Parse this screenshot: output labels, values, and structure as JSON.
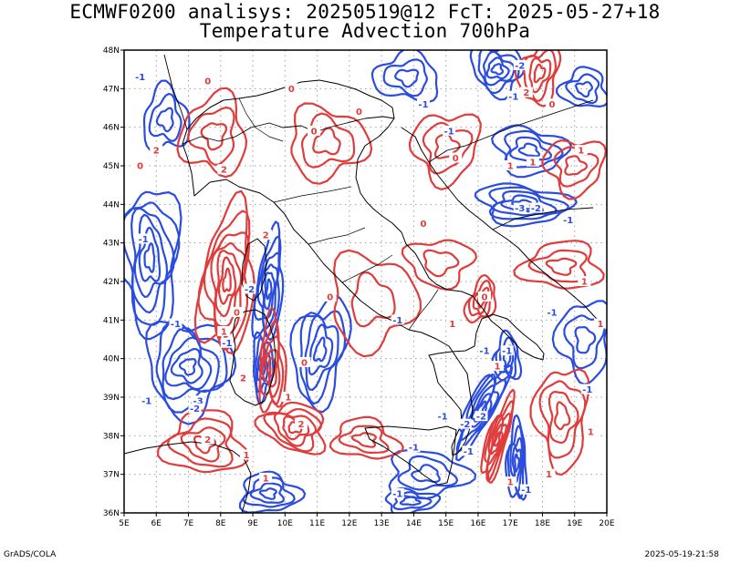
{
  "header": {
    "title_line1": "ECMWF0200 analisys: 20250519@12 FcT: 2025-05-27+18",
    "title_line2": "Temperature Advection 700hPa"
  },
  "footer": {
    "left": "GrADS/COLA",
    "right": "2025-05-19-21:58"
  },
  "map": {
    "lon_range": [
      5,
      20
    ],
    "lat_range": [
      36,
      48
    ],
    "lon_labels": [
      "5E",
      "6E",
      "7E",
      "8E",
      "9E",
      "10E",
      "11E",
      "12E",
      "13E",
      "14E",
      "15E",
      "16E",
      "17E",
      "18E",
      "19E",
      "20E"
    ],
    "lat_labels": [
      "36N",
      "37N",
      "38N",
      "39N",
      "40N",
      "41N",
      "42N",
      "43N",
      "44N",
      "45N",
      "46N",
      "47N",
      "48N"
    ],
    "grid": "dotted",
    "colors": {
      "positive": "#e03c3c",
      "negative": "#2a4de0",
      "coast": "#000000",
      "grid": "#a0a0a0"
    },
    "contour_labels": [
      {
        "text": "-2",
        "lon": 17.3,
        "lat": 47.6,
        "sign": "neg"
      },
      {
        "text": "-1",
        "lon": 14.3,
        "lat": 46.6,
        "sign": "neg"
      },
      {
        "text": "-1",
        "lon": 15.1,
        "lat": 45.9,
        "sign": "neg"
      },
      {
        "text": "-1",
        "lon": 17.1,
        "lat": 46.8,
        "sign": "neg"
      },
      {
        "text": "2",
        "lon": 17.5,
        "lat": 46.9,
        "sign": "pos"
      },
      {
        "text": "0",
        "lon": 18.3,
        "lat": 46.6,
        "sign": "pos"
      },
      {
        "text": "1",
        "lon": 19.2,
        "lat": 45.4,
        "sign": "pos"
      },
      {
        "text": "1",
        "lon": 17.7,
        "lat": 45.1,
        "sign": "pos"
      },
      {
        "text": "1",
        "lon": 17.0,
        "lat": 45.0,
        "sign": "pos"
      },
      {
        "text": "0",
        "lon": 15.3,
        "lat": 45.2,
        "sign": "pos"
      },
      {
        "text": "-3",
        "lon": 17.3,
        "lat": 43.9,
        "sign": "neg"
      },
      {
        "text": "-2",
        "lon": 17.8,
        "lat": 43.9,
        "sign": "neg"
      },
      {
        "text": "-1",
        "lon": 18.8,
        "lat": 43.6,
        "sign": "neg"
      },
      {
        "text": "0",
        "lon": 14.3,
        "lat": 43.5,
        "sign": "pos"
      },
      {
        "text": "0",
        "lon": 7.6,
        "lat": 47.2,
        "sign": "pos"
      },
      {
        "text": "0",
        "lon": 5.5,
        "lat": 45.0,
        "sign": "pos"
      },
      {
        "text": "-1",
        "lon": 5.5,
        "lat": 47.3,
        "sign": "neg"
      },
      {
        "text": "2",
        "lon": 6.0,
        "lat": 45.4,
        "sign": "pos"
      },
      {
        "text": "2",
        "lon": 8.1,
        "lat": 44.9,
        "sign": "pos"
      },
      {
        "text": "-1",
        "lon": 5.6,
        "lat": 43.1,
        "sign": "neg"
      },
      {
        "text": "2",
        "lon": 9.4,
        "lat": 43.2,
        "sign": "pos"
      },
      {
        "text": "0",
        "lon": 8.5,
        "lat": 41.2,
        "sign": "pos"
      },
      {
        "text": "-2",
        "lon": 8.9,
        "lat": 41.8,
        "sign": "neg"
      },
      {
        "text": "1",
        "lon": 8.1,
        "lat": 40.7,
        "sign": "pos"
      },
      {
        "text": "-1",
        "lon": 6.6,
        "lat": 40.9,
        "sign": "neg"
      },
      {
        "text": "-1",
        "lon": 8.2,
        "lat": 40.4,
        "sign": "neg"
      },
      {
        "text": "2",
        "lon": 8.7,
        "lat": 39.5,
        "sign": "pos"
      },
      {
        "text": "-3",
        "lon": 7.3,
        "lat": 38.9,
        "sign": "neg"
      },
      {
        "text": "-2",
        "lon": 7.2,
        "lat": 38.7,
        "sign": "neg"
      },
      {
        "text": "-1",
        "lon": 5.7,
        "lat": 38.9,
        "sign": "neg"
      },
      {
        "text": "1",
        "lon": 10.1,
        "lat": 39.0,
        "sign": "pos"
      },
      {
        "text": "2",
        "lon": 10.5,
        "lat": 38.3,
        "sign": "pos"
      },
      {
        "text": "2",
        "lon": 7.6,
        "lat": 37.9,
        "sign": "pos"
      },
      {
        "text": "1",
        "lon": 8.8,
        "lat": 37.5,
        "sign": "pos"
      },
      {
        "text": "1",
        "lon": 9.4,
        "lat": 36.9,
        "sign": "pos"
      },
      {
        "text": "0",
        "lon": 10.6,
        "lat": 39.9,
        "sign": "pos"
      },
      {
        "text": "0",
        "lon": 11.4,
        "lat": 41.6,
        "sign": "pos"
      },
      {
        "text": "0",
        "lon": 10.9,
        "lat": 45.9,
        "sign": "pos"
      },
      {
        "text": "0",
        "lon": 12.3,
        "lat": 46.4,
        "sign": "pos"
      },
      {
        "text": "0",
        "lon": 10.2,
        "lat": 47.0,
        "sign": "pos"
      },
      {
        "text": "-1",
        "lon": 16.2,
        "lat": 40.2,
        "sign": "neg"
      },
      {
        "text": "1",
        "lon": 15.2,
        "lat": 40.9,
        "sign": "pos"
      },
      {
        "text": "0",
        "lon": 16.2,
        "lat": 41.6,
        "sign": "pos"
      },
      {
        "text": "-1",
        "lon": 16.9,
        "lat": 40.2,
        "sign": "neg"
      },
      {
        "text": "1",
        "lon": 16.6,
        "lat": 39.8,
        "sign": "pos"
      },
      {
        "text": "-1",
        "lon": 14.0,
        "lat": 37.7,
        "sign": "neg"
      },
      {
        "text": "-2",
        "lon": 15.6,
        "lat": 38.3,
        "sign": "neg"
      },
      {
        "text": "-1",
        "lon": 15.7,
        "lat": 37.6,
        "sign": "neg"
      },
      {
        "text": "-2",
        "lon": 16.1,
        "lat": 38.5,
        "sign": "neg"
      },
      {
        "text": "-1",
        "lon": 14.9,
        "lat": 38.5,
        "sign": "neg"
      },
      {
        "text": "1",
        "lon": 18.2,
        "lat": 37.0,
        "sign": "pos"
      },
      {
        "text": "1",
        "lon": 19.5,
        "lat": 38.1,
        "sign": "pos"
      },
      {
        "text": "-1",
        "lon": 19.4,
        "lat": 39.2,
        "sign": "neg"
      },
      {
        "text": "1",
        "lon": 17.0,
        "lat": 36.8,
        "sign": "pos"
      },
      {
        "text": "-1",
        "lon": 17.5,
        "lat": 36.6,
        "sign": "neg"
      },
      {
        "text": "-1",
        "lon": 13.5,
        "lat": 36.5,
        "sign": "neg"
      },
      {
        "text": "-1",
        "lon": 13.5,
        "lat": 41.0,
        "sign": "neg"
      },
      {
        "text": "1",
        "lon": 19.8,
        "lat": 40.9,
        "sign": "pos"
      },
      {
        "text": "1",
        "lon": 19.3,
        "lat": 42.0,
        "sign": "pos"
      },
      {
        "text": "-1",
        "lon": 18.3,
        "lat": 41.2,
        "sign": "neg"
      }
    ]
  }
}
